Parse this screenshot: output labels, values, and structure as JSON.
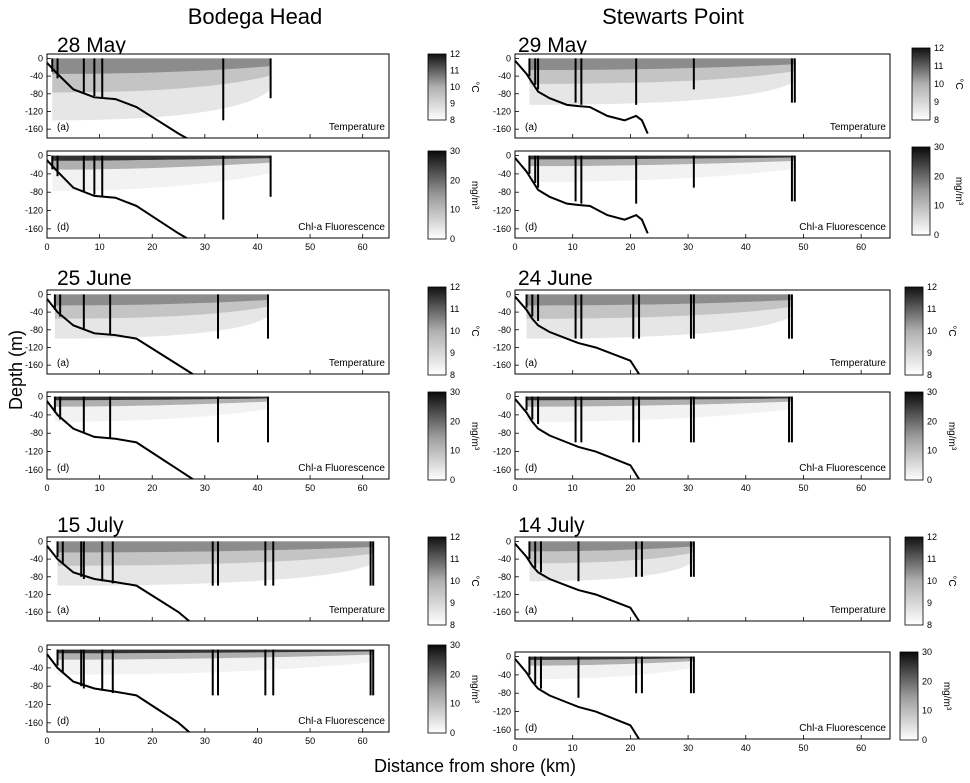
{
  "column_titles": [
    "Bodega Head",
    "Stewarts Point"
  ],
  "y_axis_label": "Depth (m)",
  "x_axis_label": "Distance from shore (km)",
  "colorbars": {
    "temperature": {
      "unit": "°C",
      "ticks": [
        8,
        9,
        10,
        11,
        12
      ],
      "range": [
        8,
        12
      ]
    },
    "chl": {
      "unit": "mg/m³",
      "ticks": [
        0,
        10,
        20,
        30
      ],
      "range": [
        0,
        30
      ]
    }
  },
  "chart_data": [
    {
      "type": "heatmap",
      "site": "Bodega Head",
      "date": "28 May",
      "panel_label": "(a)",
      "variable": "Temperature",
      "xlim": [
        0,
        65
      ],
      "ylim": [
        -180,
        10
      ],
      "yticks": [
        0,
        -40,
        -80,
        -120,
        -160
      ],
      "xticks": [
        0,
        10,
        20,
        30,
        40,
        50,
        60
      ],
      "show_xticks": false,
      "stations_km": [
        1,
        2,
        7,
        9,
        10.5,
        33.5,
        42.5
      ],
      "station_depth_m": [
        30,
        45,
        80,
        85,
        90,
        140,
        90
      ],
      "bathymetry_km": [
        0,
        2,
        5,
        9,
        13,
        17,
        21,
        25,
        28
      ],
      "bathymetry_depth_m": [
        10,
        35,
        70,
        88,
        92,
        110,
        140,
        170,
        190
      ],
      "field_extent_km": [
        1,
        42.5
      ],
      "field_bottom_m": [
        30,
        60,
        85,
        95,
        110,
        130,
        135,
        115,
        90
      ],
      "range_shown": [
        8,
        12
      ]
    },
    {
      "type": "heatmap",
      "site": "Bodega Head",
      "date": "28 May",
      "panel_label": "(d)",
      "variable": "Chl-a Fluorescence",
      "xlim": [
        0,
        65
      ],
      "ylim": [
        -180,
        10
      ],
      "yticks": [
        0,
        -40,
        -80,
        -120,
        -160
      ],
      "xticks": [
        0,
        10,
        20,
        30,
        40,
        50,
        60
      ],
      "show_xticks": true,
      "stations_km": [
        1,
        2,
        7,
        9,
        10.5,
        33.5,
        42.5
      ],
      "station_depth_m": [
        30,
        45,
        80,
        85,
        90,
        140,
        90
      ],
      "bathymetry_km": [
        0,
        2,
        5,
        9,
        13,
        17,
        21,
        25,
        28
      ],
      "bathymetry_depth_m": [
        10,
        35,
        70,
        88,
        92,
        110,
        140,
        170,
        190
      ],
      "range_shown": [
        0,
        30
      ]
    },
    {
      "type": "heatmap",
      "site": "Stewarts Point",
      "date": "29 May",
      "panel_label": "(a)",
      "variable": "Temperature",
      "xlim": [
        0,
        65
      ],
      "ylim": [
        -180,
        10
      ],
      "yticks": [
        0,
        -40,
        -80,
        -120,
        -160
      ],
      "xticks": [
        0,
        10,
        20,
        30,
        40,
        50,
        60
      ],
      "show_xticks": false,
      "stations_km": [
        2.5,
        3.5,
        4,
        10.5,
        11.5,
        21,
        31,
        48,
        48.5
      ],
      "station_depth_m": [
        40,
        60,
        70,
        100,
        105,
        105,
        70,
        100,
        100
      ],
      "bathymetry_km": [
        0,
        2,
        3,
        4,
        6,
        9,
        11,
        13,
        16,
        19,
        21,
        22,
        23
      ],
      "bathymetry_depth_m": [
        5,
        35,
        55,
        75,
        90,
        105,
        108,
        110,
        130,
        140,
        130,
        140,
        170
      ],
      "range_shown": [
        8,
        12
      ]
    },
    {
      "type": "heatmap",
      "site": "Stewarts Point",
      "date": "29 May",
      "panel_label": "(d)",
      "variable": "Chl-a Fluorescence",
      "xlim": [
        0,
        65
      ],
      "ylim": [
        -180,
        10
      ],
      "yticks": [
        0,
        -40,
        -80,
        -120,
        -160
      ],
      "xticks": [
        0,
        10,
        20,
        30,
        40,
        50,
        60
      ],
      "show_xticks": true,
      "stations_km": [
        2.5,
        3.5,
        4,
        10.5,
        11.5,
        21,
        31,
        48,
        48.5
      ],
      "station_depth_m": [
        40,
        60,
        70,
        100,
        105,
        105,
        70,
        100,
        100
      ],
      "bathymetry_km": [
        0,
        2,
        3,
        4,
        6,
        9,
        11,
        13,
        16,
        19,
        21,
        22,
        23
      ],
      "bathymetry_depth_m": [
        5,
        35,
        55,
        75,
        90,
        105,
        108,
        110,
        130,
        140,
        130,
        140,
        170
      ],
      "range_shown": [
        0,
        30
      ]
    },
    {
      "type": "heatmap",
      "site": "Bodega Head",
      "date": "25 June",
      "panel_label": "(a)",
      "variable": "Temperature",
      "xlim": [
        0,
        65
      ],
      "ylim": [
        -180,
        10
      ],
      "yticks": [
        0,
        -40,
        -80,
        -120,
        -160
      ],
      "xticks": [
        0,
        10,
        20,
        30,
        40,
        50,
        60
      ],
      "show_xticks": false,
      "stations_km": [
        1.5,
        2.5,
        7,
        12,
        32.5,
        42
      ],
      "station_depth_m": [
        35,
        50,
        80,
        90,
        100,
        100
      ],
      "bathymetry_km": [
        0,
        2,
        5,
        9,
        13,
        17,
        21,
        25,
        29
      ],
      "bathymetry_depth_m": [
        10,
        40,
        70,
        88,
        92,
        100,
        130,
        160,
        190
      ],
      "range_shown": [
        8,
        12
      ]
    },
    {
      "type": "heatmap",
      "site": "Bodega Head",
      "date": "25 June",
      "panel_label": "(d)",
      "variable": "Chl-a Fluorescence",
      "xlim": [
        0,
        65
      ],
      "ylim": [
        -180,
        10
      ],
      "yticks": [
        0,
        -40,
        -80,
        -120,
        -160
      ],
      "xticks": [
        0,
        10,
        20,
        30,
        40,
        50,
        60
      ],
      "show_xticks": true,
      "stations_km": [
        1.5,
        2.5,
        7,
        12,
        32.5,
        42
      ],
      "station_depth_m": [
        35,
        50,
        80,
        90,
        100,
        100
      ],
      "bathymetry_km": [
        0,
        2,
        5,
        9,
        13,
        17,
        21,
        25,
        29
      ],
      "bathymetry_depth_m": [
        10,
        40,
        70,
        88,
        92,
        100,
        130,
        160,
        190
      ],
      "range_shown": [
        0,
        30
      ]
    },
    {
      "type": "heatmap",
      "site": "Stewarts Point",
      "date": "24 June",
      "panel_label": "(a)",
      "variable": "Temperature",
      "xlim": [
        0,
        65
      ],
      "ylim": [
        -180,
        10
      ],
      "yticks": [
        0,
        -40,
        -80,
        -120,
        -160
      ],
      "xticks": [
        0,
        10,
        20,
        30,
        40,
        50,
        60
      ],
      "show_xticks": false,
      "stations_km": [
        2,
        3,
        4,
        10.5,
        11.5,
        20.5,
        21.5,
        30.5,
        31,
        47.5,
        48
      ],
      "station_depth_m": [
        30,
        50,
        60,
        100,
        100,
        100,
        100,
        100,
        100,
        100,
        100
      ],
      "bathymetry_km": [
        0,
        2,
        3,
        4,
        6,
        9,
        11,
        14,
        17,
        20,
        22
      ],
      "bathymetry_depth_m": [
        5,
        35,
        55,
        70,
        85,
        100,
        110,
        120,
        135,
        150,
        190
      ],
      "range_shown": [
        8,
        12
      ]
    },
    {
      "type": "heatmap",
      "site": "Stewarts Point",
      "date": "24 June",
      "panel_label": "(d)",
      "variable": "Chl-a Fluorescence",
      "xlim": [
        0,
        65
      ],
      "ylim": [
        -180,
        10
      ],
      "yticks": [
        0,
        -40,
        -80,
        -120,
        -160
      ],
      "xticks": [
        0,
        10,
        20,
        30,
        40,
        50,
        60
      ],
      "show_xticks": true,
      "stations_km": [
        2,
        3,
        4,
        10.5,
        11.5,
        20.5,
        21.5,
        30.5,
        31,
        47.5,
        48
      ],
      "station_depth_m": [
        30,
        50,
        60,
        100,
        100,
        100,
        100,
        100,
        100,
        100,
        100
      ],
      "bathymetry_km": [
        0,
        2,
        3,
        4,
        6,
        9,
        11,
        14,
        17,
        20,
        22
      ],
      "bathymetry_depth_m": [
        5,
        35,
        55,
        70,
        85,
        100,
        110,
        120,
        135,
        150,
        190
      ],
      "range_shown": [
        0,
        30
      ]
    },
    {
      "type": "heatmap",
      "site": "Bodega Head",
      "date": "15 July",
      "panel_label": "(a)",
      "variable": "Temperature",
      "xlim": [
        0,
        65
      ],
      "ylim": [
        -180,
        10
      ],
      "yticks": [
        0,
        -40,
        -80,
        -120,
        -160
      ],
      "xticks": [
        0,
        10,
        20,
        30,
        40,
        50,
        60
      ],
      "show_xticks": false,
      "stations_km": [
        2,
        3,
        6.5,
        7,
        10.5,
        12.5,
        31.5,
        32.5,
        41.5,
        43,
        61.5,
        62
      ],
      "station_depth_m": [
        35,
        50,
        80,
        85,
        90,
        95,
        100,
        100,
        100,
        100,
        100,
        100
      ],
      "bathymetry_km": [
        0,
        2,
        5,
        9,
        13,
        17,
        21,
        25,
        28
      ],
      "bathymetry_depth_m": [
        10,
        40,
        70,
        85,
        92,
        100,
        130,
        160,
        190
      ],
      "range_shown": [
        8,
        12
      ]
    },
    {
      "type": "heatmap",
      "site": "Bodega Head",
      "date": "15 July",
      "panel_label": "(d)",
      "variable": "Chl-a Fluorescence",
      "xlim": [
        0,
        65
      ],
      "ylim": [
        -180,
        10
      ],
      "yticks": [
        0,
        -40,
        -80,
        -120,
        -160
      ],
      "xticks": [
        0,
        10,
        20,
        30,
        40,
        50,
        60
      ],
      "show_xticks": true,
      "stations_km": [
        2,
        3,
        6.5,
        7,
        10.5,
        12.5,
        31.5,
        32.5,
        41.5,
        43,
        61.5,
        62
      ],
      "station_depth_m": [
        35,
        50,
        80,
        85,
        90,
        95,
        100,
        100,
        100,
        100,
        100,
        100
      ],
      "bathymetry_km": [
        0,
        2,
        5,
        9,
        13,
        17,
        21,
        25,
        28
      ],
      "bathymetry_depth_m": [
        10,
        40,
        70,
        85,
        92,
        100,
        130,
        160,
        190
      ],
      "range_shown": [
        0,
        30
      ]
    },
    {
      "type": "heatmap",
      "site": "Stewarts Point",
      "date": "14 July",
      "panel_label": "(a)",
      "variable": "Temperature",
      "xlim": [
        0,
        65
      ],
      "ylim": [
        -180,
        10
      ],
      "yticks": [
        0,
        -40,
        -80,
        -120,
        -160
      ],
      "xticks": [
        0,
        10,
        20,
        30,
        40,
        50,
        60
      ],
      "show_xticks": false,
      "stations_km": [
        2.5,
        3.5,
        4.5,
        11,
        21,
        22,
        30.5,
        31
      ],
      "station_depth_m": [
        40,
        60,
        70,
        90,
        80,
        80,
        80,
        80
      ],
      "bathymetry_km": [
        0,
        2,
        3,
        4,
        6,
        9,
        11,
        14,
        17,
        20,
        22
      ],
      "bathymetry_depth_m": [
        5,
        35,
        55,
        70,
        85,
        100,
        110,
        120,
        135,
        150,
        190
      ],
      "range_shown": [
        8,
        12
      ]
    },
    {
      "type": "heatmap",
      "site": "Stewarts Point",
      "date": "14 July",
      "panel_label": "(d)",
      "variable": "Chl-a Fluorescence",
      "xlim": [
        0,
        65
      ],
      "ylim": [
        -180,
        10
      ],
      "yticks": [
        0,
        -40,
        -80,
        -120,
        -160
      ],
      "xticks": [
        0,
        10,
        20,
        30,
        40,
        50,
        60
      ],
      "show_xticks": true,
      "stations_km": [
        2.5,
        3.5,
        4.5,
        11,
        21,
        22,
        30.5,
        31
      ],
      "station_depth_m": [
        40,
        60,
        70,
        90,
        80,
        80,
        80,
        80
      ],
      "bathymetry_km": [
        0,
        2,
        3,
        4,
        6,
        9,
        11,
        14,
        17,
        20,
        22
      ],
      "bathymetry_depth_m": [
        5,
        35,
        55,
        70,
        85,
        100,
        110,
        120,
        135,
        150,
        190
      ],
      "range_shown": [
        0,
        30
      ]
    }
  ]
}
